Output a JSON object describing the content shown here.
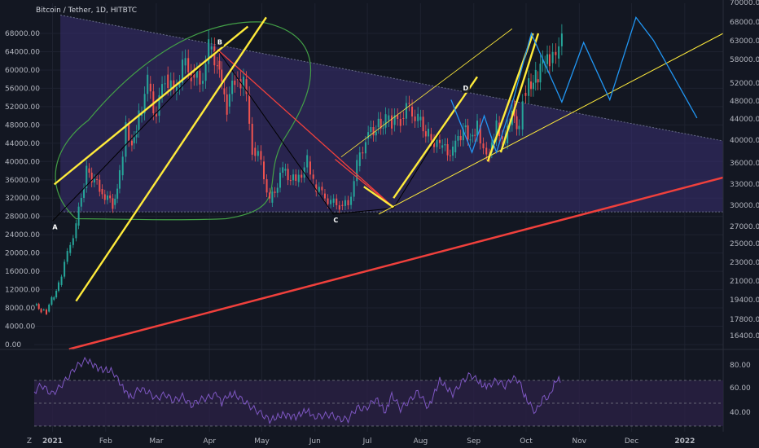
{
  "title": "Bitcoin / Tether, 1D, HITBTC",
  "logo_text": "Z",
  "colors": {
    "background": "#131722",
    "candle_up": "#26a69a",
    "candle_down": "#ef5350",
    "yellow": "#ffeb3b",
    "red_line": "#f0403c",
    "green_outline": "#43a047",
    "blue_projection": "#2196f3",
    "triangle_fill": "#3b2f73",
    "rsi_line": "#7e57c2",
    "rsi_band": "#2a2145",
    "pattern_line": "#000000"
  },
  "chart_data": [
    {
      "type": "line",
      "title": "Bitcoin / Tether, 1D, HITBTC",
      "left_axis_ticks": [
        "68000.00",
        "64000.00",
        "60000.00",
        "56000.00",
        "52000.00",
        "48000.00",
        "44000.00",
        "40000.00",
        "36000.00",
        "32000.00",
        "28000.00",
        "24000.00",
        "20000.00",
        "16000.00",
        "12000.00",
        "8000.00",
        "4000.00",
        "0.00"
      ],
      "left_axis_values": [
        68000,
        64000,
        60000,
        56000,
        52000,
        48000,
        44000,
        40000,
        36000,
        32000,
        28000,
        24000,
        20000,
        16000,
        12000,
        8000,
        4000,
        0
      ],
      "right_axis_ticks": [
        "70000.00",
        "68000.00",
        "63000.00",
        "58000.00",
        "52000.00",
        "48000.00",
        "44000.00",
        "40000.00",
        "36000.00",
        "33000.00",
        "30000.00",
        "27000.00",
        "25000.00",
        "23000.00",
        "21000.00",
        "19400.00",
        "17800.00",
        "16400.00"
      ],
      "x_ticks": [
        "2021",
        "Feb",
        "Mar",
        "Apr",
        "May",
        "Jun",
        "Jul",
        "Aug",
        "Sep",
        "Oct",
        "Nov",
        "Dec",
        "2022"
      ],
      "x_tick_days": [
        21,
        82,
        140,
        201,
        261,
        322,
        382,
        443,
        504,
        564,
        625,
        685,
        746
      ],
      "x_range_days": [
        0,
        790
      ],
      "ylim": [
        0,
        68000
      ],
      "series": [
        {
          "x": [
            0,
            8,
            14,
            20,
            28,
            38,
            48,
            60,
            75,
            90,
            98,
            105,
            112,
            120,
            130,
            140,
            150,
            160,
            170,
            180,
            190,
            200,
            210,
            215,
            221,
            230,
            240,
            250,
            260,
            270,
            285,
            300,
            313,
            320,
            330,
            340,
            350,
            360,
            370,
            380,
            392,
            403,
            410,
            420,
            430,
            440,
            452,
            465,
            480,
            492,
            500,
            508,
            515,
            522,
            530,
            540,
            548,
            556,
            560,
            567,
            575,
            583,
            591,
            598,
            605
          ],
          "values": [
            8600,
            7600,
            7200,
            9800,
            13000,
            20000,
            26000,
            38500,
            34000,
            30500,
            37000,
            48000,
            44000,
            50000,
            57000,
            50000,
            59000,
            55000,
            61000,
            59500,
            57000,
            64500,
            62000,
            56000,
            52000,
            58000,
            58000,
            43000,
            40000,
            31000,
            38000,
            35500,
            40000,
            35000,
            33000,
            31000,
            30500,
            30500,
            39000,
            45000,
            47500,
            49000,
            48000,
            49500,
            52000,
            49000,
            46000,
            43000,
            42000,
            47500,
            45500,
            48000,
            43000,
            42000,
            48500,
            44000,
            52000,
            47000,
            55000,
            57500,
            58000,
            61000,
            61500,
            62500,
            66000
          ]
        }
      ],
      "point_labels": [
        "A",
        "B",
        "C",
        "D"
      ]
    },
    {
      "type": "line",
      "title": "",
      "right_axis_ticks": [
        "80.00",
        "60.00",
        "40.00"
      ],
      "ylim": [
        25,
        95
      ],
      "series": [
        {
          "x": [
            0,
            8,
            14,
            20,
            28,
            38,
            48,
            60,
            75,
            90,
            98,
            105,
            112,
            120,
            130,
            140,
            150,
            160,
            170,
            180,
            190,
            200,
            210,
            215,
            221,
            230,
            240,
            250,
            260,
            270,
            285,
            300,
            313,
            320,
            330,
            340,
            350,
            360,
            370,
            380,
            392,
            403,
            410,
            420,
            430,
            440,
            452,
            465,
            480,
            492,
            500,
            508,
            515,
            522,
            530,
            540,
            548,
            556,
            560,
            567,
            575,
            583,
            591,
            598,
            605
          ],
          "values": [
            60,
            66,
            62,
            58,
            63,
            72,
            82,
            88,
            80,
            78,
            68,
            60,
            55,
            63,
            60,
            54,
            58,
            52,
            56,
            48,
            53,
            55,
            58,
            50,
            56,
            58,
            52,
            46,
            41,
            35,
            40,
            38,
            44,
            38,
            39,
            40,
            36,
            36,
            46,
            45,
            54,
            42,
            58,
            45,
            52,
            60,
            46,
            70,
            58,
            70,
            75,
            70,
            65,
            66,
            70,
            65,
            72,
            70,
            60,
            50,
            42,
            54,
            56,
            70,
            71
          ]
        }
      ],
      "bands": [
        70,
        50,
        30
      ]
    }
  ]
}
